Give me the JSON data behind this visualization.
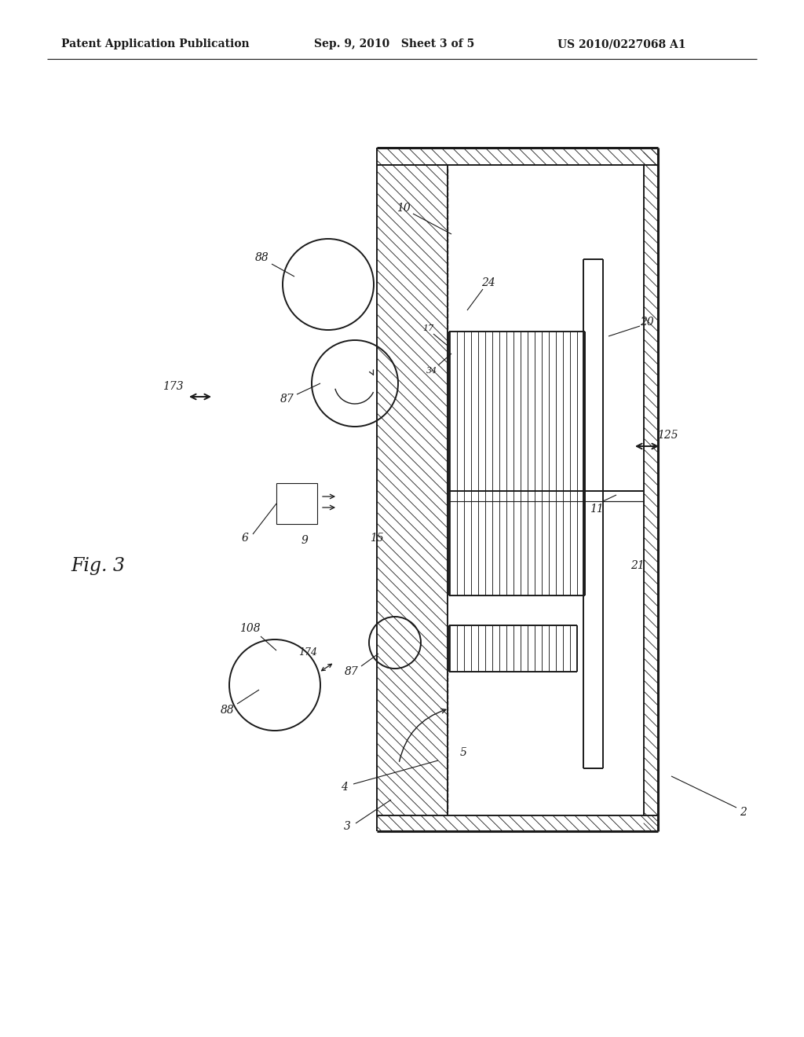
{
  "bg_color": "#ffffff",
  "line_color": "#1a1a1a",
  "header_left": "Patent Application Publication",
  "header_mid": "Sep. 9, 2010   Sheet 3 of 5",
  "header_right": "US 2010/0227068 A1",
  "fig_label": "Fig. 3",
  "lw_thin": 0.8,
  "lw_med": 1.4,
  "lw_thick": 2.2,
  "hatch_sp": 14,
  "label_fs": 10,
  "header_fs": 10
}
